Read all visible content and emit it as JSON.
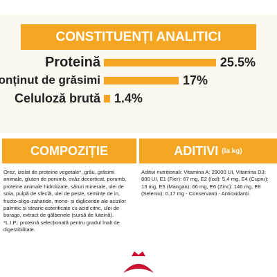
{
  "chart_data": {
    "type": "bar",
    "orientation": "horizontal",
    "title": "CONSTITUENȚI ANALITICI",
    "categories": [
      "Proteină",
      "Conținut de grăsimi",
      "Celuloză brută"
    ],
    "values": [
      25.5,
      17,
      1.4
    ],
    "value_labels": [
      "25.5%",
      "17%",
      "1.4%"
    ],
    "color": "#f4a623"
  },
  "composition": {
    "title": "COMPOZIȚIE",
    "paragraphs": [
      "Orez, izolat de proteine vegetale*, grâu, grăsimi animale, gluten de porumb, ovăz decorticat, porumb, proteine animale hidrolizate, săruri minerale, ulei de soia, pulpă de sfeclă, ulei de pește, semințe de in, fructo-oligo-zaharide, mono- și digliceride ale acizilor palmitic și stearic esterificate cu acid citric, ulei de borago, extract de gălbenele (sursă de luteină).",
      "*L.I.P.: proteină selecționată pentru gradul înalt de digestibilitate."
    ]
  },
  "additives": {
    "title": "ADITIVI",
    "unit": "(la kg)",
    "text": "Aditivi nutriționali: Vitamina A: 29000 UI, Vitamina D3: 800 UI, E1 (Fier): 67 mg, E2 (Iod): 5,4 mg, E4 (Cupru): 13 mg, E5 (Mangan): 66 mg, E6 (Zinc): 146 mg, E8 (Seleniu): 0,17 mg - Conservanți - Antioxidanți."
  }
}
